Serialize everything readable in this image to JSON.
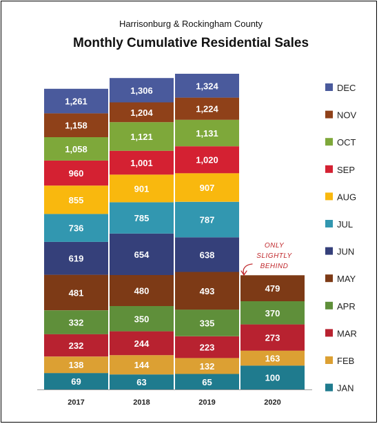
{
  "chart_data": {
    "type": "bar",
    "stacked": true,
    "subtitle": "Harrisonburg & Rockingham County",
    "title": "Monthly Cumulative Residential Sales",
    "categories": [
      "2017",
      "2018",
      "2019",
      "2020"
    ],
    "series": [
      {
        "name": "JAN",
        "color": "#1f7b8e",
        "values": [
          69,
          63,
          65,
          100
        ]
      },
      {
        "name": "FEB",
        "color": "#dca033",
        "values": [
          138,
          144,
          132,
          163
        ]
      },
      {
        "name": "MAR",
        "color": "#b82230",
        "values": [
          232,
          244,
          223,
          273
        ]
      },
      {
        "name": "APR",
        "color": "#5f8f3a",
        "values": [
          332,
          350,
          335,
          370
        ]
      },
      {
        "name": "MAY",
        "color": "#7d3a16",
        "values": [
          481,
          480,
          493,
          479
        ]
      },
      {
        "name": "JUN",
        "color": "#35407a",
        "values": [
          619,
          654,
          638,
          null
        ]
      },
      {
        "name": "JUL",
        "color": "#3297b0",
        "values": [
          736,
          785,
          787,
          null
        ]
      },
      {
        "name": "AUG",
        "color": "#f9b80e",
        "values": [
          855,
          901,
          907,
          null
        ]
      },
      {
        "name": "SEP",
        "color": "#d42132",
        "values": [
          960,
          1001,
          1020,
          null
        ]
      },
      {
        "name": "OCT",
        "color": "#7ea83a",
        "values": [
          1058,
          1121,
          1131,
          null
        ]
      },
      {
        "name": "NOV",
        "color": "#8f4119",
        "values": [
          1158,
          1204,
          1224,
          null
        ]
      },
      {
        "name": "DEC",
        "color": "#4a5a9c",
        "values": [
          1261,
          1306,
          1324,
          null
        ]
      }
    ],
    "legend_position": "right",
    "grid": false,
    "annotation": {
      "lines": [
        "ONLY",
        "SLIGHTLY",
        "BEHIND"
      ],
      "color": "#c0282c"
    }
  }
}
